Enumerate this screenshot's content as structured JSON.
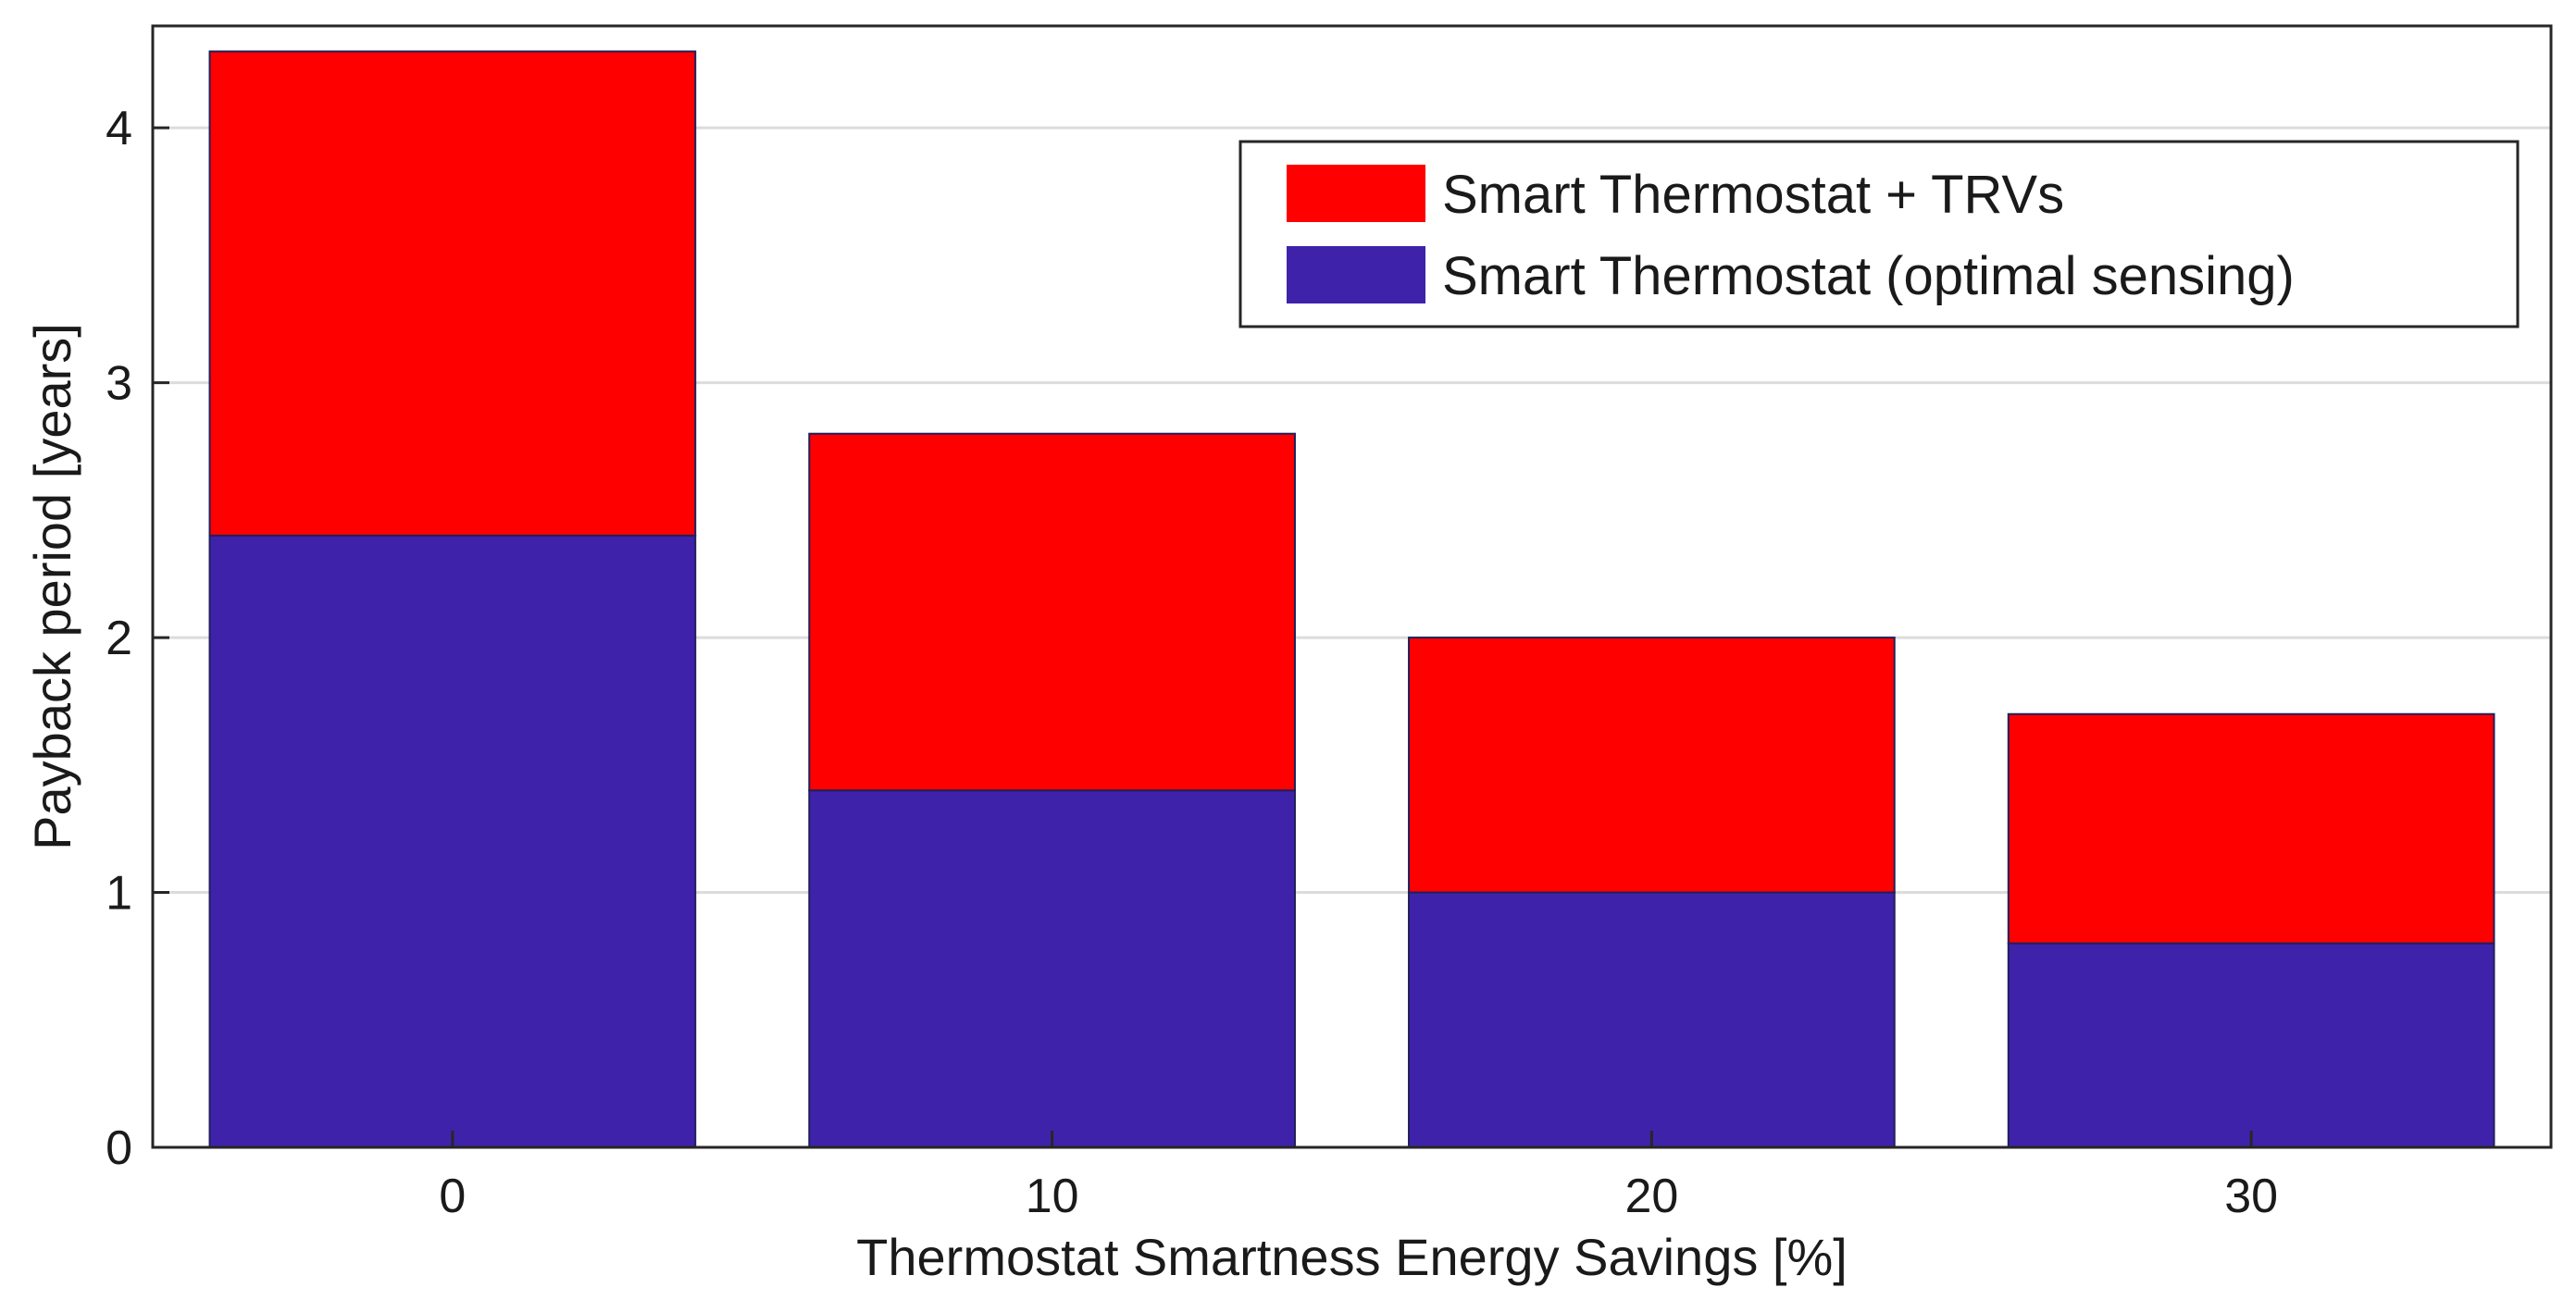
{
  "chart_data": {
    "type": "bar",
    "stacked": true,
    "categories": [
      "0",
      "10",
      "20",
      "30"
    ],
    "series": [
      {
        "name": "Smart Thermostat (optimal sensing)",
        "color": "#3f22aa",
        "values": [
          2.4,
          1.4,
          1.0,
          0.8
        ]
      },
      {
        "name": "Smart Thermostat + TRVs",
        "color": "#ff0000",
        "totals": [
          4.3,
          2.8,
          2.0,
          1.7
        ]
      }
    ],
    "xlabel": "Thermostat Smartness Energy Savings [%]",
    "ylabel": "Payback period [years]",
    "ylim": [
      0,
      4.4
    ],
    "yticks": [
      "0",
      "1",
      "2",
      "3",
      "4"
    ],
    "grid": true,
    "legend": {
      "placement": "top-right",
      "entries": [
        "Smart Thermostat + TRVs",
        "Smart Thermostat (optimal sensing)"
      ]
    }
  }
}
